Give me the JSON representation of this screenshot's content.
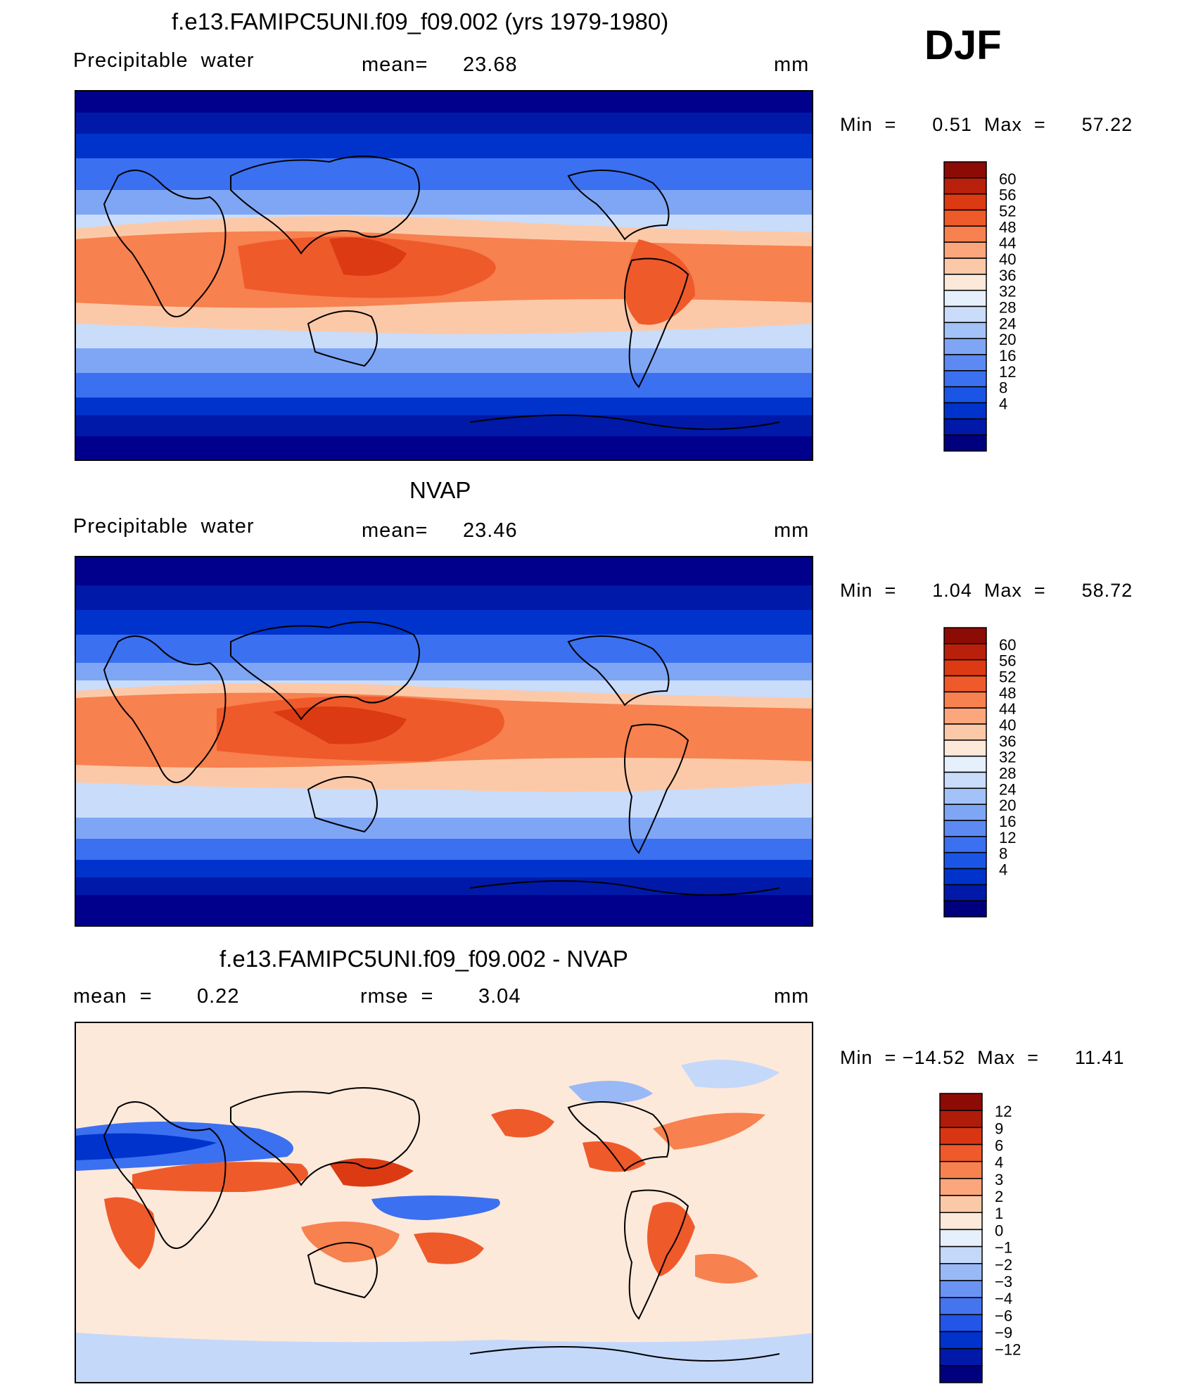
{
  "season": "DJF",
  "colors": {
    "abs_scale": [
      "#00007f",
      "#0019a8",
      "#0033cc",
      "#1a55e6",
      "#3b70f0",
      "#5c8af2",
      "#7fa6f5",
      "#a3c2f7",
      "#c9dcfa",
      "#e6f0fc",
      "#fde9da",
      "#fcc9a8",
      "#fba67c",
      "#f7814f",
      "#ef5a2b",
      "#dc3a13",
      "#b9200b",
      "#8c0b05"
    ],
    "diff_scale": [
      "#00007f",
      "#0019a8",
      "#0033cc",
      "#2255e8",
      "#4475ef",
      "#6b93f3",
      "#99b8f6",
      "#c4d8fa",
      "#e6f0fc",
      "#fde9da",
      "#fcc9a8",
      "#fba67c",
      "#f7814f",
      "#ef5a2b",
      "#d83612",
      "#b01c0a",
      "#8c0b05"
    ]
  },
  "panels": [
    {
      "title": "f.e13.FAMIPC5UNI.f09_f09.002 (yrs 1979-1980)",
      "left_label": "Precipitable  water",
      "stat_label": "mean=",
      "stat_value": "23.68",
      "units": "mm",
      "minmax": "Min  =      0.51  Max  =      57.22",
      "colorbar_labels": [
        "60",
        "56",
        "52",
        "48",
        "44",
        "40",
        "36",
        "32",
        "28",
        "24",
        "20",
        "16",
        "12",
        "8",
        "4"
      ]
    },
    {
      "title": "NVAP",
      "left_label": "Precipitable  water",
      "stat_label": "mean=",
      "stat_value": "23.46",
      "units": "mm",
      "minmax": "Min  =      1.04  Max  =      58.72",
      "colorbar_labels": [
        "60",
        "56",
        "52",
        "48",
        "44",
        "40",
        "36",
        "32",
        "28",
        "24",
        "20",
        "16",
        "12",
        "8",
        "4"
      ]
    },
    {
      "title": "f.e13.FAMIPC5UNI.f09_f09.002 - NVAP",
      "left_label": "mean  =",
      "left_value": "0.22",
      "stat_label": "rmse  =",
      "stat_value": "3.04",
      "units": "mm",
      "minmax": "Min  = −14.52  Max  =      11.41",
      "colorbar_labels": [
        "12",
        "9",
        "6",
        "4",
        "3",
        "2",
        "1",
        "0",
        "−1",
        "−2",
        "−3",
        "−4",
        "−6",
        "−9",
        "−12"
      ]
    }
  ]
}
